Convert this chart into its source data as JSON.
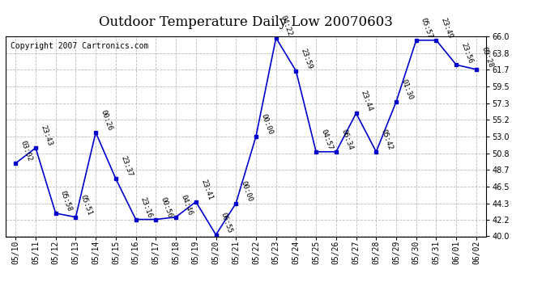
{
  "title": "Outdoor Temperature Daily Low 20070603",
  "copyright": "Copyright 2007 Cartronics.com",
  "x_labels": [
    "05/10",
    "05/11",
    "05/12",
    "05/13",
    "05/14",
    "05/15",
    "05/16",
    "05/17",
    "05/18",
    "05/19",
    "05/20",
    "05/21",
    "05/22",
    "05/23",
    "05/24",
    "05/25",
    "05/26",
    "05/27",
    "05/28",
    "05/29",
    "05/30",
    "05/31",
    "06/01",
    "06/02"
  ],
  "y_values": [
    49.5,
    51.5,
    43.0,
    42.5,
    53.5,
    47.5,
    42.2,
    42.2,
    42.5,
    44.5,
    40.2,
    44.3,
    53.0,
    65.8,
    61.5,
    51.0,
    51.0,
    56.0,
    51.0,
    57.5,
    65.5,
    65.5,
    62.3,
    61.7
  ],
  "annotations": [
    "03:02",
    "23:43",
    "05:58",
    "05:51",
    "00:26",
    "23:37",
    "23:16",
    "00:56",
    "04:46",
    "23:41",
    "06:55",
    "00:00",
    "00:00",
    "04:22",
    "23:59",
    "04:57",
    "06:34",
    "23:44",
    "05:42",
    "01:30",
    "05:57",
    "23:49",
    "23:56",
    "05:28"
  ],
  "ylim": [
    40.0,
    66.0
  ],
  "yticks": [
    40.0,
    42.2,
    44.3,
    46.5,
    48.7,
    50.8,
    53.0,
    55.2,
    57.3,
    59.5,
    61.7,
    63.8,
    66.0
  ],
  "line_color": "#0000cc",
  "marker_color": "#0000cc",
  "bg_color": "#ffffff",
  "grid_color": "#bbbbbb",
  "title_fontsize": 12,
  "annotation_fontsize": 6.5,
  "copyright_fontsize": 7
}
